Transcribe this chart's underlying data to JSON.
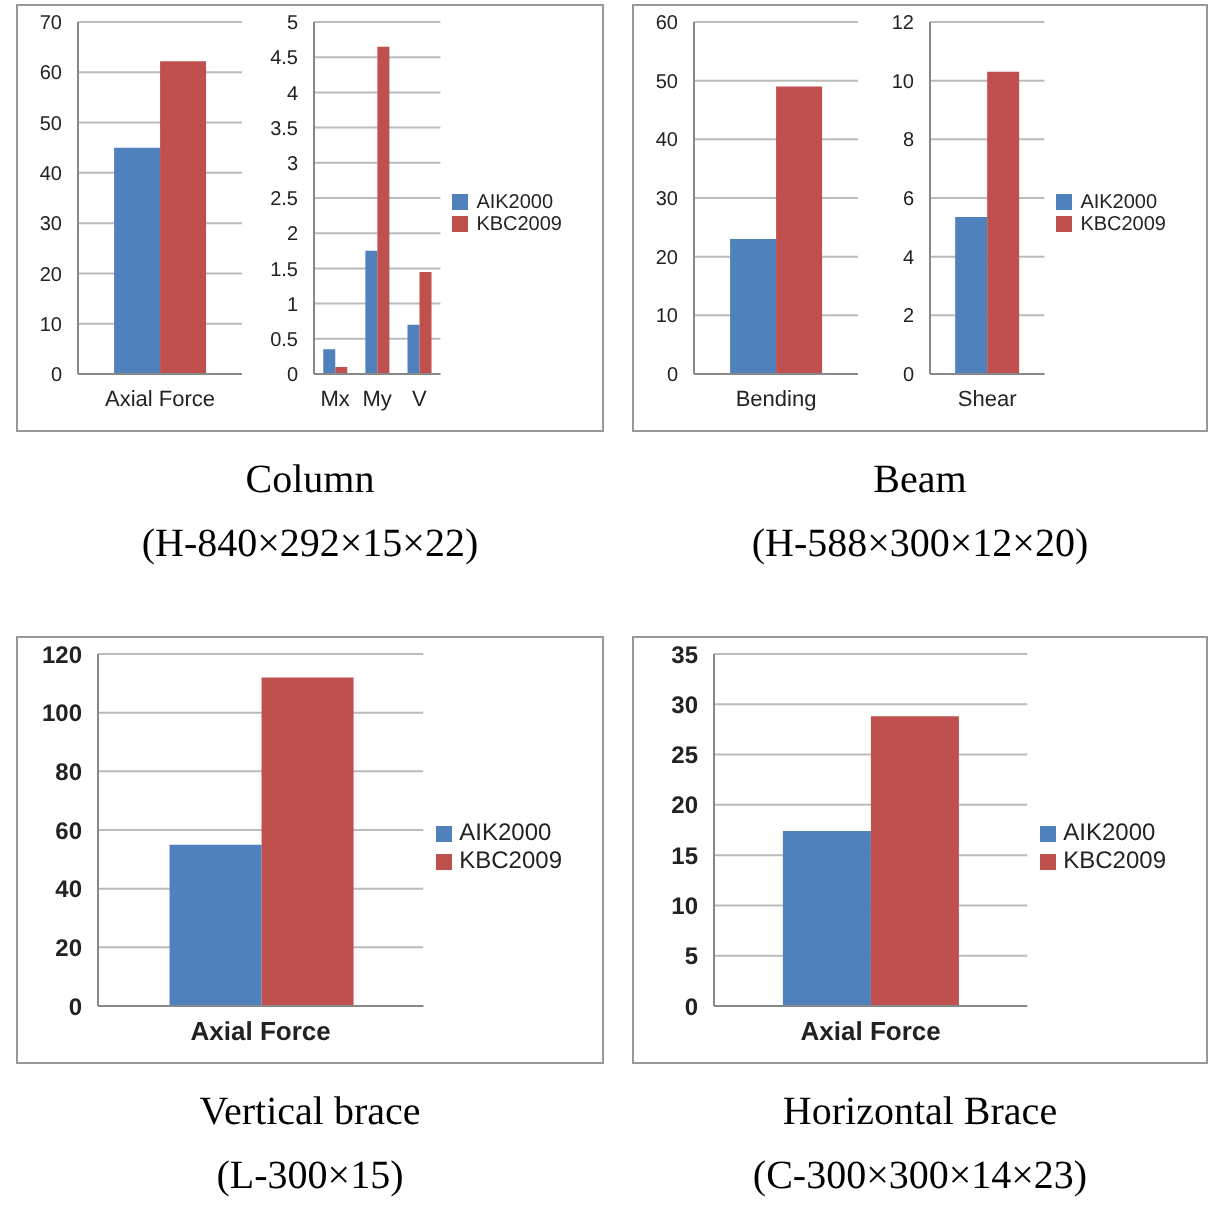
{
  "chart_data": [
    {
      "type": "bar",
      "title": "Column",
      "subtitle": "(H-840×292×15×22)",
      "categories": [
        "Axial Force"
      ],
      "series": [
        {
          "color": "#4f81bd",
          "values": [
            45
          ]
        },
        {
          "color": "#c0504d",
          "values": [
            62.2
          ]
        }
      ],
      "ylim": [
        0,
        70
      ],
      "yticks": [
        0,
        10,
        20,
        30,
        40,
        50,
        60,
        70
      ],
      "grid": "y",
      "legend": false
    },
    {
      "type": "bar",
      "categories": [
        "Mx",
        "My",
        "V"
      ],
      "series": [
        {
          "name": "AIK2000",
          "color": "#4f81bd",
          "values": [
            0.35,
            1.75,
            0.7
          ]
        },
        {
          "name": "KBC2009",
          "color": "#c0504d",
          "values": [
            0.1,
            4.65,
            1.45
          ]
        }
      ],
      "ylim": [
        0,
        5
      ],
      "yticks": [
        0,
        0.5,
        1,
        1.5,
        2,
        2.5,
        3,
        3.5,
        4,
        4.5,
        5
      ],
      "grid": "y",
      "legend": "right"
    },
    {
      "type": "bar",
      "title": "Beam",
      "subtitle": "(H-588×300×12×20)",
      "categories": [
        "Bending"
      ],
      "series": [
        {
          "color": "#4f81bd",
          "values": [
            23
          ]
        },
        {
          "color": "#c0504d",
          "values": [
            49
          ]
        }
      ],
      "ylim": [
        0,
        60
      ],
      "yticks": [
        0,
        10,
        20,
        30,
        40,
        50,
        60
      ],
      "grid": "y",
      "legend": false
    },
    {
      "type": "bar",
      "categories": [
        "Shear"
      ],
      "series": [
        {
          "name": "AIK2000",
          "color": "#4f81bd",
          "values": [
            5.35
          ]
        },
        {
          "name": "KBC2009",
          "color": "#c0504d",
          "values": [
            10.3
          ]
        }
      ],
      "ylim": [
        0,
        12
      ],
      "yticks": [
        0,
        2,
        4,
        6,
        8,
        10,
        12
      ],
      "grid": "y",
      "legend": "right"
    },
    {
      "type": "bar",
      "title": "Vertical brace",
      "subtitle": "(L-300×15)",
      "categories": [
        "Axial Force"
      ],
      "series": [
        {
          "name": "AIK2000",
          "color": "#4f81bd",
          "values": [
            55
          ]
        },
        {
          "name": "KBC2009",
          "color": "#c0504d",
          "values": [
            112
          ]
        }
      ],
      "ylim": [
        0,
        120
      ],
      "yticks": [
        0,
        20,
        40,
        60,
        80,
        100,
        120
      ],
      "grid": "y",
      "legend": "right"
    },
    {
      "type": "bar",
      "title": "Horizontal Brace",
      "subtitle": "(C-300×300×14×23)",
      "categories": [
        "Axial Force"
      ],
      "series": [
        {
          "name": "AIK2000",
          "color": "#4f81bd",
          "values": [
            17.4
          ]
        },
        {
          "name": "KBC2009",
          "color": "#c0504d",
          "values": [
            28.8
          ]
        }
      ],
      "ylim": [
        0,
        35
      ],
      "yticks": [
        0,
        5,
        10,
        15,
        20,
        25,
        30,
        35
      ],
      "grid": "y",
      "legend": "right"
    }
  ]
}
